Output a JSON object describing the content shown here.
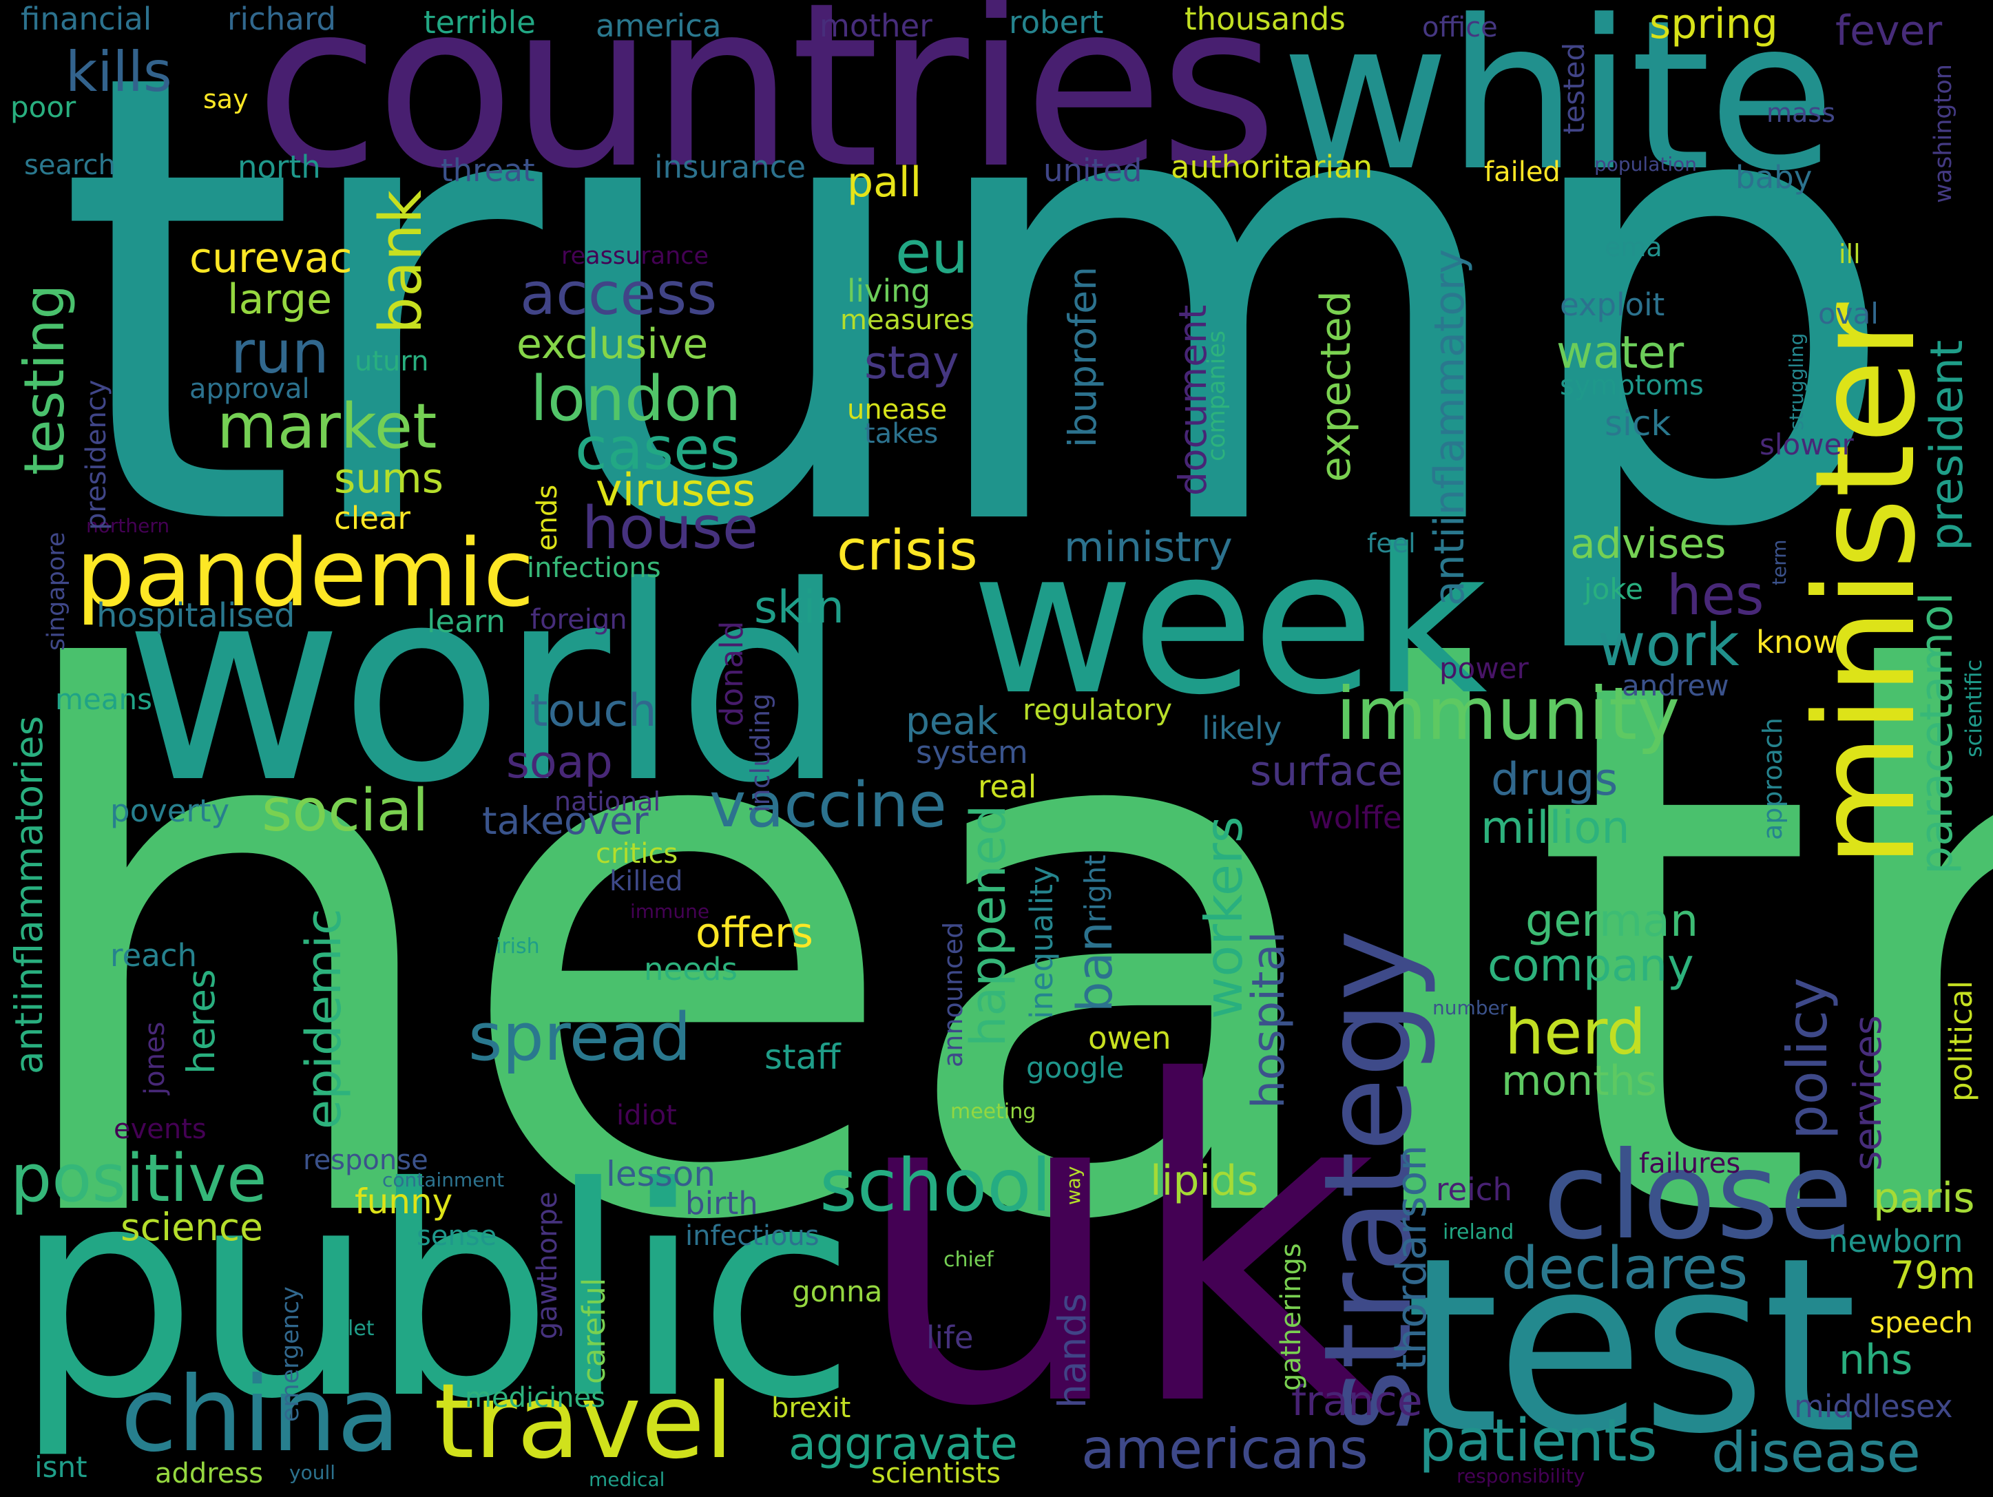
{
  "words": {
    "health": {
      "text": "health",
      "color": "#4ac16d"
    },
    "trump": {
      "text": "trump",
      "color": "#1f948c"
    },
    "countries": {
      "text": "countries",
      "color": "#481f70"
    },
    "white": {
      "text": "white",
      "color": "#21908d"
    },
    "minister": {
      "text": "minister",
      "color": "#dde318"
    },
    "world": {
      "text": "world",
      "color": "#1f9a8a"
    },
    "week": {
      "text": "week",
      "color": "#1e9c89"
    },
    "public": {
      "text": "public",
      "color": "#22a785"
    },
    "uk": {
      "text": "uk",
      "color": "#440154"
    },
    "test": {
      "text": "test",
      "color": "#23898e"
    },
    "pandemic": {
      "text": "pandemic",
      "color": "#fde725"
    },
    "close": {
      "text": "close",
      "color": "#3b528b"
    },
    "strategy": {
      "text": "strategy",
      "color": "#3e4a89"
    },
    "china": {
      "text": "china",
      "color": "#277f8e"
    },
    "travel": {
      "text": "travel",
      "color": "#d0e11c"
    },
    "immunity": {
      "text": "immunity",
      "color": "#5ec962"
    },
    "school": {
      "text": "school",
      "color": "#25ac82"
    },
    "spread": {
      "text": "spread",
      "color": "#2a788e"
    },
    "positive": {
      "text": "positive",
      "color": "#35b779"
    },
    "vaccine": {
      "text": "vaccine",
      "color": "#2c728e"
    },
    "market": {
      "text": "market",
      "color": "#75d054"
    },
    "london": {
      "text": "london",
      "color": "#52c569"
    },
    "access": {
      "text": "access",
      "color": "#414487"
    },
    "cases": {
      "text": "cases",
      "color": "#22a884"
    },
    "crisis": {
      "text": "crisis",
      "color": "#fde725"
    },
    "house": {
      "text": "house",
      "color": "#46327e"
    },
    "social": {
      "text": "social",
      "color": "#7ad151"
    },
    "herd": {
      "text": "herd",
      "color": "#c2df23"
    },
    "workers": {
      "text": "workers",
      "color": "#29af7f"
    },
    "epidemic": {
      "text": "epidemic",
      "color": "#2db27d"
    },
    "hospital": {
      "text": "hospital",
      "color": "#3b528b"
    },
    "policy": {
      "text": "policy",
      "color": "#3e4989"
    },
    "declares": {
      "text": "declares",
      "color": "#2a788e"
    },
    "patients": {
      "text": "patients",
      "color": "#20928c"
    },
    "disease": {
      "text": "disease",
      "color": "#26828e"
    },
    "americans": {
      "text": "americans",
      "color": "#3e4989"
    },
    "aggravate": {
      "text": "aggravate",
      "color": "#20a386"
    },
    "paracetamol": {
      "text": "paracetamol",
      "color": "#37b878"
    },
    "president": {
      "text": "president",
      "color": "#1f9e89"
    },
    "testing": {
      "text": "testing",
      "color": "#4ac16d"
    },
    "bank": {
      "text": "bank",
      "color": "#c8e020"
    },
    "run": {
      "text": "run",
      "color": "#31688e"
    },
    "eu": {
      "text": "eu",
      "color": "#22a884"
    },
    "kills": {
      "text": "kills",
      "color": "#33638d"
    },
    "work": {
      "text": "work",
      "color": "#21918c"
    },
    "hes": {
      "text": "hes",
      "color": "#482878"
    },
    "happened": {
      "text": "happened",
      "color": "#35b779"
    },
    "ban": {
      "text": "ban",
      "color": "#2c728e"
    },
    "ibuprofen": {
      "text": "ibuprofen",
      "color": "#2c728e"
    },
    "antiinflammatory": {
      "text": "antiinflammatory",
      "color": "#2a788e"
    },
    "expected": {
      "text": "expected",
      "color": "#7ad151"
    },
    "document": {
      "text": "document",
      "color": "#482576"
    },
    "antiinflammatories": {
      "text": "antiinflammatories",
      "color": "#29af7f"
    },
    "thordarson": {
      "text": "thordarson",
      "color": "#31688e"
    },
    "services": {
      "text": "services",
      "color": "#472d7b"
    },
    "political": {
      "text": "political",
      "color": "#c5e021"
    },
    "water": {
      "text": "water",
      "color": "#6ccd5a"
    },
    "stay": {
      "text": "stay",
      "color": "#453781"
    },
    "viruses": {
      "text": "viruses",
      "color": "#dde318"
    },
    "curevac": {
      "text": "curevac",
      "color": "#fde725"
    },
    "large": {
      "text": "large",
      "color": "#95d840"
    },
    "exclusive": {
      "text": "exclusive",
      "color": "#86d549"
    },
    "sums": {
      "text": "sums",
      "color": "#b5de2b"
    },
    "clear": {
      "text": "clear",
      "color": "#fde725"
    },
    "ministry": {
      "text": "ministry",
      "color": "#2c728e"
    },
    "advises": {
      "text": "advises",
      "color": "#75d054"
    },
    "skin": {
      "text": "skin",
      "color": "#1f9e89"
    },
    "touch": {
      "text": "touch",
      "color": "#31688e"
    },
    "soap": {
      "text": "soap",
      "color": "#482878"
    },
    "surface": {
      "text": "surface",
      "color": "#46337f"
    },
    "drugs": {
      "text": "drugs",
      "color": "#31688e"
    },
    "million": {
      "text": "million",
      "color": "#2db27d"
    },
    "takeover": {
      "text": "takeover",
      "color": "#3a548c"
    },
    "german": {
      "text": "german",
      "color": "#3dbc74"
    },
    "company": {
      "text": "company",
      "color": "#2db27d"
    },
    "offers": {
      "text": "offers",
      "color": "#fde725"
    },
    "months": {
      "text": "months",
      "color": "#5ec962"
    },
    "peak": {
      "text": "peak",
      "color": "#2c728e"
    },
    "spring": {
      "text": "spring",
      "color": "#d8e219"
    },
    "fever": {
      "text": "fever",
      "color": "#472c7a"
    },
    "pall": {
      "text": "pall",
      "color": "#e7e419"
    },
    "tested": {
      "text": "tested",
      "color": "#414487"
    },
    "paris": {
      "text": "paris",
      "color": "#a5db36"
    },
    "79m": {
      "text": "79m",
      "color": "#c2df23"
    },
    "nhs": {
      "text": "nhs",
      "color": "#29af7f"
    },
    "newborn": {
      "text": "newborn",
      "color": "#1f968b"
    },
    "speech": {
      "text": "speech",
      "color": "#fde725"
    },
    "middlesex": {
      "text": "middlesex",
      "color": "#3f4788"
    },
    "france": {
      "text": "france",
      "color": "#482374"
    },
    "lipids": {
      "text": "lipids",
      "color": "#a5db36"
    },
    "reich": {
      "text": "reich",
      "color": "#482173"
    },
    "hands": {
      "text": "hands",
      "color": "#414487"
    },
    "science": {
      "text": "science",
      "color": "#b5de2b"
    },
    "funny": {
      "text": "funny",
      "color": "#dde318"
    },
    "lesson": {
      "text": "lesson",
      "color": "#355f8d"
    },
    "birth": {
      "text": "birth",
      "color": "#3b528b"
    },
    "infectious": {
      "text": "infectious",
      "color": "#2c728e"
    },
    "heres": {
      "text": "heres",
      "color": "#29af7f"
    },
    "jones": {
      "text": "jones",
      "color": "#482878"
    },
    "reach": {
      "text": "reach",
      "color": "#26828e"
    },
    "poverty": {
      "text": "poverty",
      "color": "#277f8e"
    },
    "means": {
      "text": "means",
      "color": "#20a386"
    },
    "hospitalised": {
      "text": "hospitalised",
      "color": "#2a788e"
    },
    "learn": {
      "text": "learn",
      "color": "#2db27d"
    },
    "infections": {
      "text": "infections",
      "color": "#37b878"
    },
    "foreign": {
      "text": "foreign",
      "color": "#472d7b"
    },
    "donald": {
      "text": "donald",
      "color": "#481b6d"
    },
    "including": {
      "text": "including",
      "color": "#414487"
    },
    "national": {
      "text": "national",
      "color": "#46327e"
    },
    "critics": {
      "text": "critics",
      "color": "#b5de2b"
    },
    "killed": {
      "text": "killed",
      "color": "#3e4989"
    },
    "immune": {
      "text": "immune",
      "color": "#440154"
    },
    "irish": {
      "text": "irish",
      "color": "#1f9e89"
    },
    "needs": {
      "text": "needs",
      "color": "#2db27d"
    },
    "staff": {
      "text": "staff",
      "color": "#1f9e89"
    },
    "announced": {
      "text": "announced",
      "color": "#3e4989"
    },
    "inequality": {
      "text": "inequality",
      "color": "#25858e"
    },
    "right": {
      "text": "right",
      "color": "#2c728e"
    },
    "owen": {
      "text": "owen",
      "color": "#c8e020"
    },
    "google": {
      "text": "google",
      "color": "#1f968b"
    },
    "real": {
      "text": "real",
      "color": "#cae11f"
    },
    "system": {
      "text": "system",
      "color": "#3a548c"
    },
    "regulatory": {
      "text": "regulatory",
      "color": "#b8de29"
    },
    "likely": {
      "text": "likely",
      "color": "#2c728e"
    },
    "andrew": {
      "text": "andrew",
      "color": "#3b528b"
    },
    "power": {
      "text": "power",
      "color": "#481467"
    },
    "know": {
      "text": "know",
      "color": "#fde725"
    },
    "joke": {
      "text": "joke",
      "color": "#29af7f"
    },
    "feel": {
      "text": "feel",
      "color": "#25858e"
    },
    "wolffe": {
      "text": "wolffe",
      "color": "#440154"
    },
    "approach": {
      "text": "approach",
      "color": "#25838e"
    },
    "scientific": {
      "text": "scientific",
      "color": "#1f9a8a"
    },
    "slower": {
      "text": "slower",
      "color": "#482878"
    },
    "sick": {
      "text": "sick",
      "color": "#2a788e"
    },
    "symptoms": {
      "text": "symptoms",
      "color": "#1f988b"
    },
    "exploit": {
      "text": "exploit",
      "color": "#2c728e"
    },
    "ema": {
      "text": "ema",
      "color": "#21918c"
    },
    "ill": {
      "text": "ill",
      "color": "#b8de29"
    },
    "oval": {
      "text": "oval",
      "color": "#31688e"
    },
    "struggling": {
      "text": "struggling",
      "color": "#24878e"
    },
    "term": {
      "text": "term",
      "color": "#3b528b"
    },
    "population": {
      "text": "population",
      "color": "#404688"
    },
    "baby": {
      "text": "baby",
      "color": "#2c728e"
    },
    "mass": {
      "text": "mass",
      "color": "#404688"
    },
    "washington": {
      "text": "washington",
      "color": "#443a83"
    },
    "failed": {
      "text": "failed",
      "color": "#fde725"
    },
    "authoritarian": {
      "text": "authoritarian",
      "color": "#d2e21b"
    },
    "united": {
      "text": "united",
      "color": "#404688"
    },
    "office": {
      "text": "office",
      "color": "#453781"
    },
    "thousands": {
      "text": "thousands",
      "color": "#c2df23"
    },
    "robert": {
      "text": "robert",
      "color": "#25848e"
    },
    "mother": {
      "text": "mother",
      "color": "#472d7b"
    },
    "america": {
      "text": "america",
      "color": "#2a788e"
    },
    "terrible": {
      "text": "terrible",
      "color": "#22a884"
    },
    "financial": {
      "text": "financial",
      "color": "#2c728e"
    },
    "richard": {
      "text": "richard",
      "color": "#31688e"
    },
    "say": {
      "text": "say",
      "color": "#fde725"
    },
    "poor": {
      "text": "poor",
      "color": "#29af7f"
    },
    "search": {
      "text": "search",
      "color": "#2a788e"
    },
    "north": {
      "text": "north",
      "color": "#1f988b"
    },
    "threat": {
      "text": "threat",
      "color": "#3b528b"
    },
    "insurance": {
      "text": "insurance",
      "color": "#2c728e"
    },
    "reassurance": {
      "text": "reassurance",
      "color": "#440154"
    },
    "living": {
      "text": "living",
      "color": "#6ccd5a"
    },
    "measures": {
      "text": "measures",
      "color": "#b5de2b"
    },
    "unease": {
      "text": "unease",
      "color": "#d5e21a"
    },
    "takes": {
      "text": "takes",
      "color": "#2c728e"
    },
    "uturn": {
      "text": "uturn",
      "color": "#29af7f"
    },
    "approval": {
      "text": "approval",
      "color": "#2c728e"
    },
    "presidency": {
      "text": "presidency",
      "color": "#404688"
    },
    "singapore": {
      "text": "singapore",
      "color": "#3f4788"
    },
    "northern": {
      "text": "northern",
      "color": "#440154"
    },
    "companies": {
      "text": "companies",
      "color": "#2db27d"
    },
    "ends": {
      "text": "ends",
      "color": "#dde318"
    },
    "events": {
      "text": "events",
      "color": "#440154"
    },
    "idiot": {
      "text": "idiot",
      "color": "#440154"
    },
    "meeting": {
      "text": "meeting",
      "color": "#93d741"
    },
    "response": {
      "text": "response",
      "color": "#3b528b"
    },
    "containment": {
      "text": "containment",
      "color": "#2c728e"
    },
    "sense": {
      "text": "sense",
      "color": "#1f988b"
    },
    "way": {
      "text": "way",
      "color": "#b5de2b"
    },
    "failures": {
      "text": "failures",
      "color": "#440154"
    },
    "ireland": {
      "text": "ireland",
      "color": "#22a884"
    },
    "gatherings": {
      "text": "gatherings",
      "color": "#7ad151"
    },
    "gawthorpe": {
      "text": "gawthorpe",
      "color": "#46327e"
    },
    "careful": {
      "text": "careful",
      "color": "#7ad151"
    },
    "chief": {
      "text": "chief",
      "color": "#75d054"
    },
    "gonna": {
      "text": "gonna",
      "color": "#95d840"
    },
    "life": {
      "text": "life",
      "color": "#46327e"
    },
    "emergency": {
      "text": "emergency",
      "color": "#31688e"
    },
    "let": {
      "text": "let",
      "color": "#1f9e89"
    },
    "medicines": {
      "text": "medicines",
      "color": "#2db27d"
    },
    "brexit": {
      "text": "brexit",
      "color": "#c2df23"
    },
    "isnt": {
      "text": "isnt",
      "color": "#1f9e89"
    },
    "address": {
      "text": "address",
      "color": "#95d840"
    },
    "youll": {
      "text": "youll",
      "color": "#2c728e"
    },
    "medical": {
      "text": "medical",
      "color": "#1f9e89"
    },
    "scientists": {
      "text": "scientists",
      "color": "#c2df23"
    },
    "responsibility": {
      "text": "responsibility",
      "color": "#440154"
    },
    "number": {
      "text": "number",
      "color": "#3b528b"
    }
  }
}
